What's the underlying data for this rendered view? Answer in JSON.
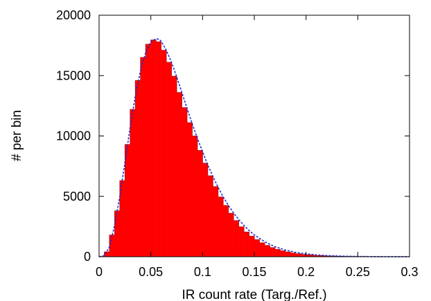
{
  "chart_data": {
    "type": "bar",
    "xlabel": "IR count rate (Targ./Ref.)",
    "ylabel": "# per bin",
    "xlim": [
      0,
      0.3
    ],
    "ylim": [
      0,
      20000
    ],
    "x_ticks": [
      "0",
      "0.05",
      "0.1",
      "0.15",
      "0.2",
      "0.25",
      "0.3"
    ],
    "y_ticks": [
      "0",
      "5000",
      "10000",
      "15000",
      "20000"
    ],
    "grid": false,
    "legend": "none",
    "colors": {
      "histogram_fill": "#ff0000",
      "histogram_edge": "#b01010",
      "fit_curve": "#1f2fcf",
      "axes": "#000000"
    },
    "histogram": {
      "bin_width": 0.005,
      "bin_starts": [
        0.0,
        0.005,
        0.01,
        0.015,
        0.02,
        0.025,
        0.03,
        0.035,
        0.04,
        0.045,
        0.05,
        0.055,
        0.06,
        0.065,
        0.07,
        0.075,
        0.08,
        0.085,
        0.09,
        0.095,
        0.1,
        0.105,
        0.11,
        0.115,
        0.12,
        0.125,
        0.13,
        0.135,
        0.14,
        0.145,
        0.15,
        0.155,
        0.16,
        0.165,
        0.17,
        0.175,
        0.18,
        0.185,
        0.19,
        0.195,
        0.2,
        0.205,
        0.21,
        0.215,
        0.22,
        0.225,
        0.23,
        0.235,
        0.24,
        0.245,
        0.25,
        0.255,
        0.26,
        0.265,
        0.27,
        0.275,
        0.28,
        0.285,
        0.29,
        0.295
      ],
      "counts": [
        20,
        400,
        1800,
        3800,
        6300,
        9300,
        12200,
        14600,
        16500,
        17600,
        17950,
        17800,
        17100,
        16100,
        14950,
        13600,
        12350,
        11100,
        10000,
        8800,
        7750,
        6700,
        5800,
        4950,
        4250,
        3600,
        2990,
        2480,
        2050,
        1700,
        1420,
        1150,
        940,
        760,
        610,
        490,
        390,
        310,
        245,
        195,
        155,
        120,
        95,
        75,
        58,
        45,
        35,
        28,
        22,
        17,
        13,
        10,
        8,
        6,
        5,
        4,
        3,
        2,
        2,
        1
      ]
    },
    "fit_curve": {
      "style": "dashed",
      "x": [
        0.0,
        0.005,
        0.01,
        0.015,
        0.02,
        0.025,
        0.03,
        0.035,
        0.04,
        0.045,
        0.05,
        0.055,
        0.058,
        0.06,
        0.065,
        0.07,
        0.075,
        0.08,
        0.085,
        0.09,
        0.095,
        0.1,
        0.105,
        0.11,
        0.115,
        0.12,
        0.125,
        0.13,
        0.135,
        0.14,
        0.145,
        0.15,
        0.16,
        0.17,
        0.18,
        0.19,
        0.2,
        0.21,
        0.22,
        0.23,
        0.24,
        0.25,
        0.26,
        0.27,
        0.28,
        0.29,
        0.3
      ],
      "y": [
        0,
        100,
        800,
        2600,
        5000,
        7800,
        10700,
        13300,
        15400,
        16900,
        17800,
        18050,
        18000,
        17850,
        17100,
        16100,
        14900,
        13600,
        12300,
        11000,
        9800,
        8700,
        7600,
        6650,
        5750,
        4950,
        4250,
        3620,
        3070,
        2590,
        2170,
        1810,
        1240,
        830,
        550,
        360,
        235,
        150,
        95,
        60,
        38,
        24,
        15,
        9,
        6,
        4,
        2
      ]
    }
  }
}
